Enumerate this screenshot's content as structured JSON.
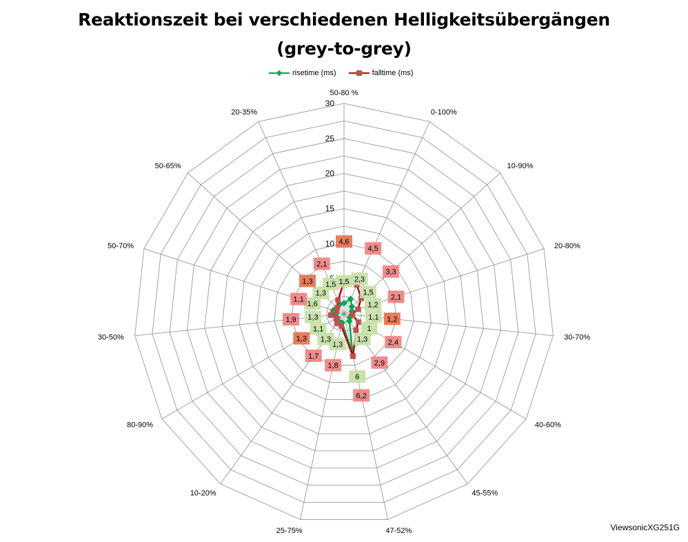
{
  "chart_data": {
    "type": "radar",
    "title_line1": "Reaktionszeit bei verschiedenen Helligkeitsübergängen",
    "title_line2": "(grey-to-grey)",
    "categories": [
      "50-80 %",
      "0-100%",
      "10-90%",
      "20-80%",
      "30-70%",
      "40-60%",
      "45-55%",
      "47-52%",
      "25-75%",
      "10-20%",
      "80-90%",
      "30-50%",
      "50-70%",
      "50-65%",
      "20-35%"
    ],
    "r_ticks": [
      "0",
      "5",
      "10",
      "15",
      "20",
      "25",
      "30"
    ],
    "rlim": [
      0,
      30
    ],
    "grid": true,
    "legend_position": "top",
    "series": [
      {
        "name": "risetime (ms)",
        "color": "#00a650",
        "label_bg": "#c4e0a5",
        "values": [
          1.5,
          2.3,
          1.5,
          1.2,
          1.1,
          1,
          1.3,
          6,
          1.3,
          1.3,
          1.1,
          1.3,
          1.6,
          1.3,
          1.5
        ],
        "labels": [
          "1,5",
          "2,3",
          "1,5",
          "1,2",
          "1,1",
          "1",
          "1,3",
          "6",
          "1,3",
          "1,3",
          "1,1",
          "1,3",
          "1,6",
          "1,3",
          "1,5"
        ]
      },
      {
        "name": "falltime (ms)",
        "color": "#c00000",
        "label_bg": "#f08080",
        "label_bg_alt": "#e2704c",
        "values": [
          4.6,
          4.5,
          3.3,
          2.1,
          1.2,
          2.4,
          2.9,
          6.2,
          1.8,
          1.7,
          1.3,
          1.9,
          1.1,
          1.3,
          2.1
        ],
        "labels": [
          "4,6",
          "4,5",
          "3,3",
          "2,1",
          "1,2",
          "2,4",
          "2,9",
          "6,2",
          "1,8",
          "1,7",
          "1,3",
          "1,9",
          "1,1",
          "1,3",
          "2,1"
        ]
      }
    ]
  },
  "footer": "ViewsonicXG251G"
}
